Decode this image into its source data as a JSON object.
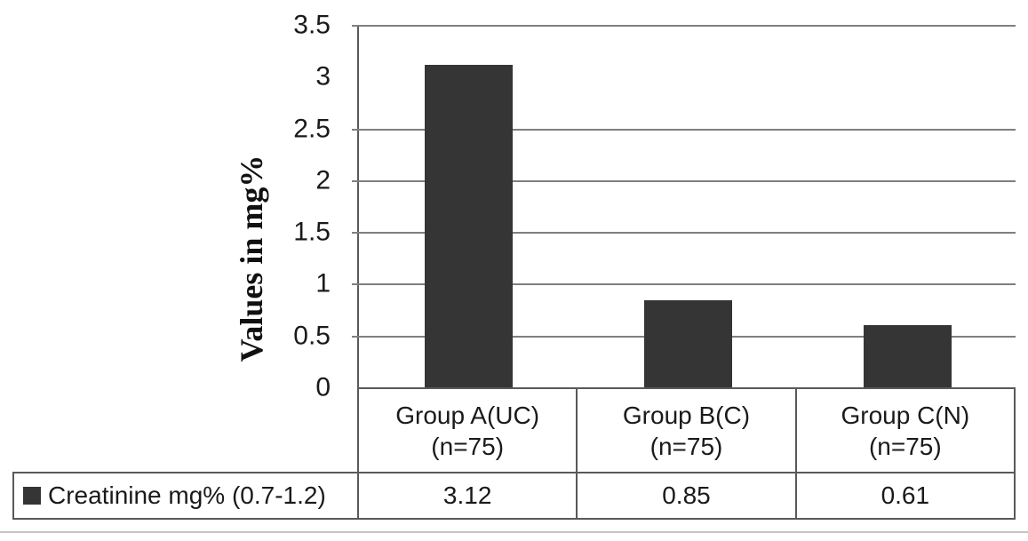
{
  "chart_data": {
    "type": "bar",
    "title": "",
    "ylabel": "Values in mg%",
    "xlabel": "",
    "categories": [
      [
        "Group A(UC)",
        "(n=75)"
      ],
      [
        "Group B(C)",
        "(n=75)"
      ],
      [
        "Group C(N)",
        "(n=75)"
      ]
    ],
    "series": [
      {
        "name": "Creatinine mg% (0.7-1.2)",
        "values": [
          "3.12",
          "0.85",
          "0.61"
        ]
      }
    ],
    "ylim": [
      0,
      3.5
    ],
    "ytick_interval": 0.5,
    "yticks": [
      {
        "label": "3.5",
        "value": 3.5
      },
      {
        "label": "3",
        "value": 3
      },
      {
        "label": "2.5",
        "value": 2.5
      },
      {
        "label": "2",
        "value": 2
      },
      {
        "label": "1.5",
        "value": 1.5
      },
      {
        "label": "1",
        "value": 1
      },
      {
        "label": "0.5",
        "value": 0.5
      },
      {
        "label": "0",
        "value": 0
      }
    ],
    "gridlines_at": [
      3.5,
      2.5,
      2,
      1.5,
      1,
      0.5
    ],
    "grid": true,
    "legend_position": "bottom-table-left-cell"
  },
  "colors": {
    "bar": "#353535",
    "border": "#595959",
    "gridline": "#7f7f7f",
    "text": "#1a1a1a",
    "divider": "#c4c4c4"
  }
}
